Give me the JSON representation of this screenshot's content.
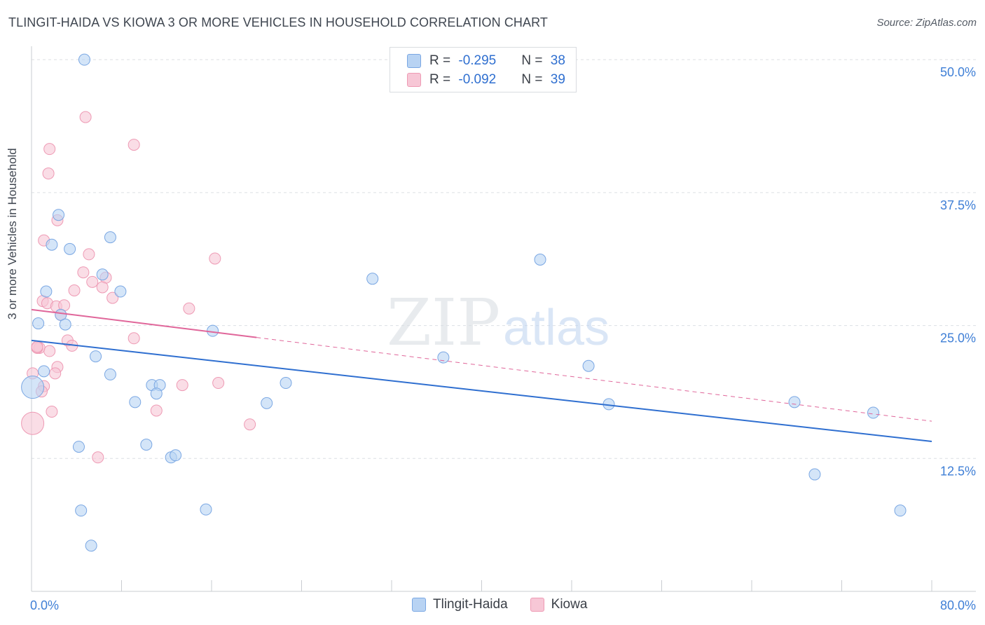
{
  "header": {
    "title": "TLINGIT-HAIDA VS KIOWA 3 OR MORE VEHICLES IN HOUSEHOLD CORRELATION CHART",
    "source": "Source: ZipAtlas.com"
  },
  "watermark": {
    "zip": "ZIP",
    "atlas": "atlas"
  },
  "legend": {
    "rows": [
      {
        "r_label": "R = ",
        "r_value": "-0.295",
        "n_label": "N = ",
        "n_value": "38"
      },
      {
        "r_label": "R = ",
        "r_value": "-0.092",
        "n_label": "N = ",
        "n_value": "39"
      }
    ]
  },
  "bottom_legend": {
    "series1": "Tlingit-Haida",
    "series2": "Kiowa"
  },
  "colors": {
    "blue_fill": "#b8d3f3",
    "blue_stroke": "#7aa7e3",
    "blue_line": "#2f6fd0",
    "pink_fill": "#f7c7d6",
    "pink_stroke": "#ee9ab4",
    "pink_line": "#e0669a",
    "axis_text": "#3f7fd6",
    "grid": "#dcdfe4"
  },
  "chart_data": {
    "type": "scatter",
    "title": "TLINGIT-HAIDA VS KIOWA 3 OR MORE VEHICLES IN HOUSEHOLD CORRELATION CHART",
    "xlabel": "",
    "ylabel": "3 or more Vehicles in Household",
    "xlim": [
      0,
      80
    ],
    "ylim": [
      0,
      51
    ],
    "x_tick_labels": [
      "0.0%",
      "80.0%"
    ],
    "y_ticks": [
      12.5,
      25.0,
      37.5,
      50.0
    ],
    "y_tick_labels": [
      "12.5%",
      "25.0%",
      "37.5%",
      "50.0%"
    ],
    "series": [
      {
        "name": "Tlingit-Haida",
        "r": -0.295,
        "n": 38,
        "trend": {
          "x0": 0,
          "y0": 23.6,
          "x1": 80,
          "y1": 14.1,
          "dashed_from": null
        },
        "points": [
          [
            4.7,
            50.0
          ],
          [
            2.4,
            35.4
          ],
          [
            1.8,
            32.6
          ],
          [
            3.4,
            32.2
          ],
          [
            7.0,
            33.3
          ],
          [
            1.3,
            28.2
          ],
          [
            6.3,
            29.8
          ],
          [
            7.9,
            28.2
          ],
          [
            0.6,
            25.2
          ],
          [
            2.6,
            26.0
          ],
          [
            3.0,
            25.1
          ],
          [
            1.1,
            20.7
          ],
          [
            5.7,
            22.1
          ],
          [
            7.0,
            20.4
          ],
          [
            9.2,
            17.8
          ],
          [
            10.7,
            19.4
          ],
          [
            11.4,
            19.4
          ],
          [
            11.1,
            18.6
          ],
          [
            4.2,
            13.6
          ],
          [
            10.2,
            13.8
          ],
          [
            12.4,
            12.6
          ],
          [
            12.8,
            12.8
          ],
          [
            4.4,
            7.6
          ],
          [
            5.3,
            4.3
          ],
          [
            15.5,
            7.7
          ],
          [
            16.1,
            24.5
          ],
          [
            20.9,
            17.7
          ],
          [
            22.6,
            19.6
          ],
          [
            30.3,
            29.4
          ],
          [
            36.6,
            22.0
          ],
          [
            45.2,
            31.2
          ],
          [
            49.5,
            21.2
          ],
          [
            51.3,
            17.6
          ],
          [
            67.8,
            17.8
          ],
          [
            69.6,
            11.0
          ],
          [
            74.8,
            16.8
          ],
          [
            77.2,
            7.6
          ],
          [
            0.1,
            19.2
          ]
        ]
      },
      {
        "name": "Kiowa",
        "r": -0.092,
        "n": 39,
        "trend": {
          "x0": 0,
          "y0": 26.5,
          "x1": 80,
          "y1": 16.0,
          "dashed_from": 20
        },
        "points": [
          [
            4.8,
            44.6
          ],
          [
            1.6,
            41.6
          ],
          [
            9.1,
            42.0
          ],
          [
            1.5,
            39.3
          ],
          [
            2.3,
            34.9
          ],
          [
            1.1,
            33.0
          ],
          [
            5.1,
            31.7
          ],
          [
            16.3,
            31.3
          ],
          [
            4.6,
            30.0
          ],
          [
            6.6,
            29.5
          ],
          [
            5.4,
            29.1
          ],
          [
            6.3,
            28.6
          ],
          [
            3.8,
            28.3
          ],
          [
            7.2,
            27.6
          ],
          [
            1.0,
            27.3
          ],
          [
            1.4,
            27.1
          ],
          [
            2.2,
            26.8
          ],
          [
            2.9,
            26.9
          ],
          [
            2.6,
            26.0
          ],
          [
            14.0,
            26.6
          ],
          [
            3.2,
            23.6
          ],
          [
            3.6,
            23.1
          ],
          [
            9.1,
            23.8
          ],
          [
            0.7,
            22.9
          ],
          [
            0.5,
            22.9
          ],
          [
            1.6,
            22.6
          ],
          [
            2.3,
            21.1
          ],
          [
            2.1,
            20.5
          ],
          [
            1.1,
            19.3
          ],
          [
            0.9,
            18.8
          ],
          [
            13.4,
            19.4
          ],
          [
            16.6,
            19.6
          ],
          [
            1.8,
            16.9
          ],
          [
            11.1,
            17.0
          ],
          [
            19.4,
            15.7
          ],
          [
            5.9,
            12.6
          ],
          [
            0.1,
            20.5
          ],
          [
            0.5,
            23.0
          ],
          [
            0.1,
            15.8
          ]
        ]
      }
    ]
  }
}
